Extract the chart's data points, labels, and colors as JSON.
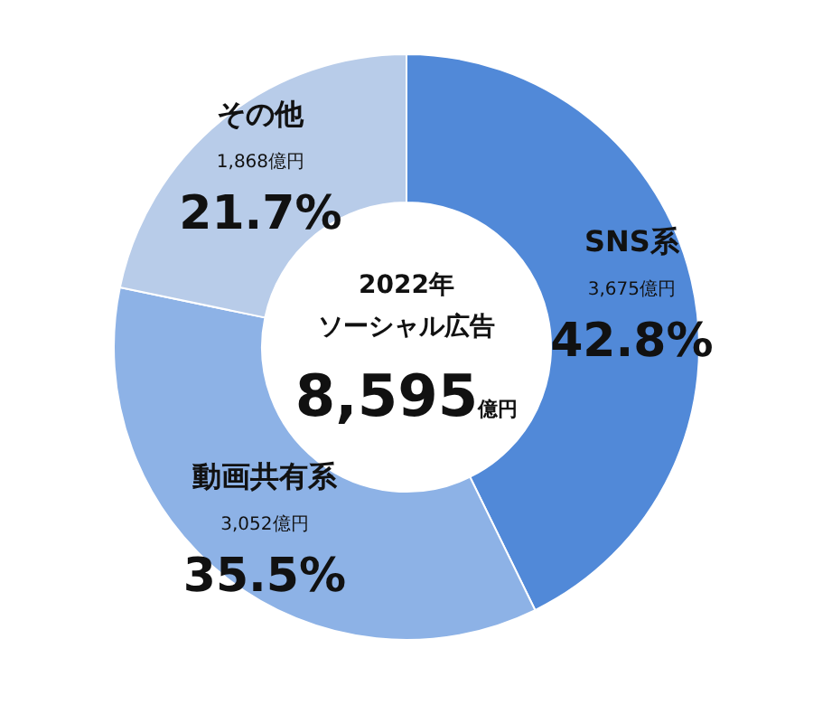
{
  "chart_data": {
    "type": "donut",
    "title": "2022年",
    "subtitle": "ソーシャル広告",
    "categories": [
      "SNS系",
      "動画共有系",
      "その他"
    ],
    "values": [
      3675,
      3052,
      1868
    ],
    "colors": [
      "#5189d8",
      "#8db2e6",
      "#b8cce9"
    ],
    "value_labels": [
      "3,675億円",
      "3,052億円",
      "1,868億円"
    ],
    "annotations": [
      "8,595億円",
      {
        "text": "42.8%",
        "x": "SNS系"
      },
      {
        "text": "35.5%",
        "x": "動画共有系"
      },
      {
        "text": "21.7%",
        "x": "その他"
      }
    ],
    "legend": false
  }
}
